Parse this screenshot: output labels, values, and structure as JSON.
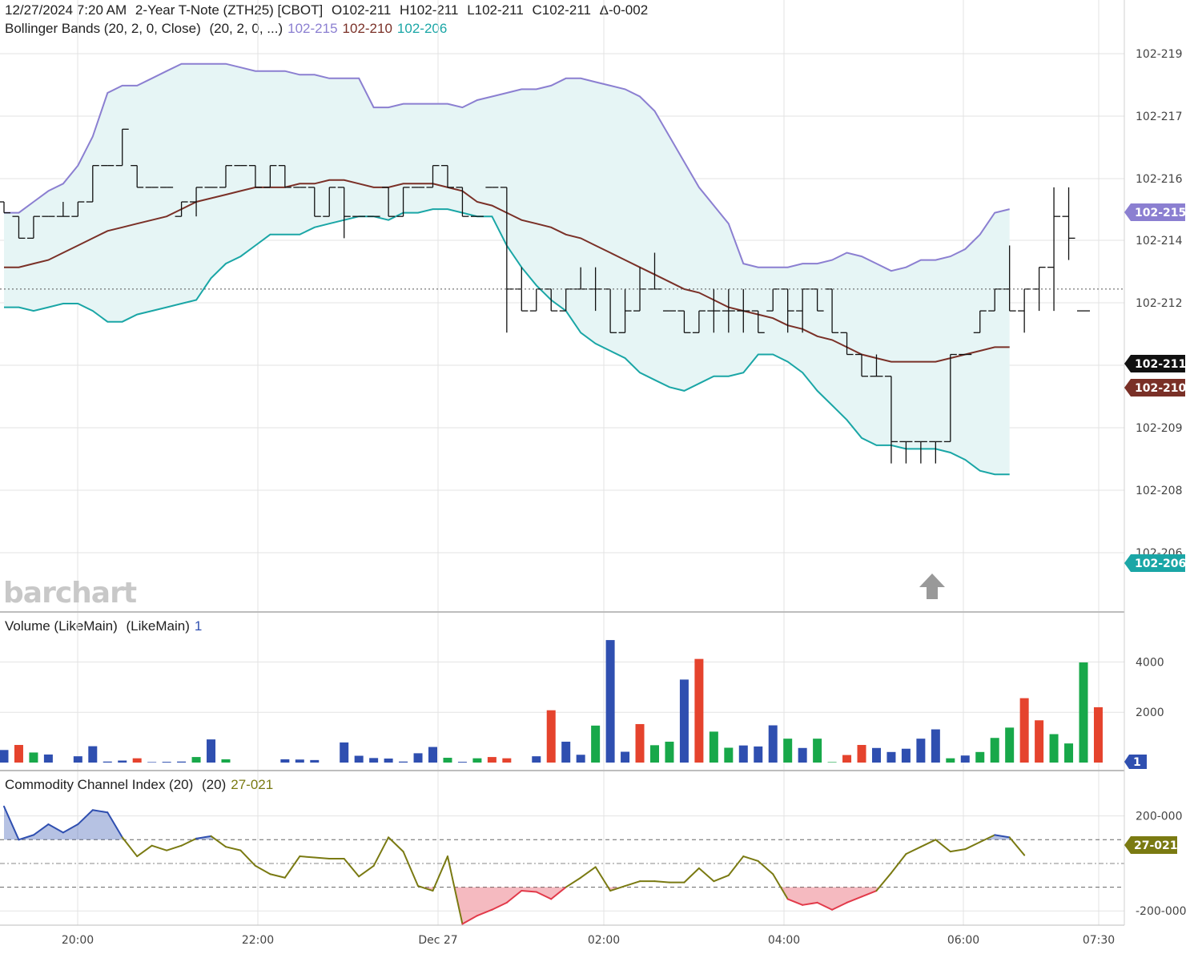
{
  "header": {
    "line1": {
      "timestamp": "12/27/2024 7:20 AM",
      "instrument": "2-Year T-Note (ZTH25) [CBOT]",
      "open": "O102-211",
      "high": "H102-211",
      "low": "L102-211",
      "close": "C102-211",
      "change": "Δ-0-002"
    },
    "line2": {
      "study": "Bollinger Bands (20, 2, 0, Close)",
      "params": "(20, 2, 0, ...)",
      "upper": "102-215",
      "middle": "102-210",
      "lower": "102-206"
    }
  },
  "watermark": "barchart",
  "panes": {
    "volume": {
      "title": "Volume (LikeMain)",
      "params": "(LikeMain)",
      "value": "1"
    },
    "cci": {
      "title": "Commodity Channel Index (20)",
      "params": "(20)",
      "value": "27-021"
    }
  },
  "badges": {
    "upper": "102-215",
    "last": "102-211",
    "middle": "102-210",
    "lower": "102-206",
    "volume": "1",
    "cci": "27-021"
  },
  "colors": {
    "upper_band": "#8b7fd1",
    "middle_band": "#7a3027",
    "lower_band": "#1aa6a6",
    "band_fill": "#e6f5f5",
    "vol_up": "#18a84a",
    "vol_down": "#e5432d",
    "vol_neutral": "#2f4fb0",
    "cci_line": "#7a7a12",
    "cci_above": "#2f4fb0",
    "cci_below": "#e23a4a",
    "last_badge": "#111111"
  },
  "chart_data": [
    {
      "type": "line",
      "title": "2-Year T-Note (ZTH25) [CBOT] — price bars with Bollinger Bands (20, 2, 0, Close)",
      "x_ticks": [
        "20:00",
        "22:00",
        "Dec 27",
        "02:00",
        "04:00",
        "06:00",
        "07:30"
      ],
      "y_ticks": [
        "102-219",
        "102-217",
        "102-216",
        "102-214",
        "102-212",
        "102-209",
        "102-208",
        "102-206"
      ],
      "y_unit": "32nds above 102",
      "ylim": [
        20.5,
        22.05
      ],
      "series": [
        {
          "name": "102-215",
          "values": [
            21.59,
            21.59,
            21.62,
            21.65,
            21.67,
            21.72,
            21.8,
            21.92,
            21.94,
            21.94,
            21.96,
            21.98,
            22.0,
            22.0,
            22.0,
            22.0,
            21.99,
            21.98,
            21.98,
            21.98,
            21.97,
            21.97,
            21.96,
            21.96,
            21.96,
            21.88,
            21.88,
            21.89,
            21.89,
            21.89,
            21.89,
            21.88,
            21.9,
            21.91,
            21.92,
            21.93,
            21.93,
            21.94,
            21.96,
            21.96,
            21.95,
            21.94,
            21.93,
            21.91,
            21.87,
            21.8,
            21.73,
            21.66,
            21.61,
            21.56,
            21.45,
            21.44,
            21.44,
            21.44,
            21.45,
            21.45,
            21.46,
            21.48,
            21.47,
            21.45,
            21.43,
            21.44,
            21.46,
            21.46,
            21.47,
            21.49,
            21.53,
            21.59,
            21.6
          ]
        },
        {
          "name": "102-210",
          "values": [
            21.44,
            21.44,
            21.45,
            21.46,
            21.48,
            21.5,
            21.52,
            21.54,
            21.55,
            21.56,
            21.57,
            21.58,
            21.6,
            21.62,
            21.63,
            21.64,
            21.65,
            21.66,
            21.66,
            21.66,
            21.67,
            21.67,
            21.68,
            21.68,
            21.67,
            21.66,
            21.66,
            21.67,
            21.67,
            21.67,
            21.66,
            21.65,
            21.62,
            21.61,
            21.59,
            21.57,
            21.56,
            21.55,
            21.53,
            21.52,
            21.5,
            21.48,
            21.46,
            21.44,
            21.42,
            21.4,
            21.38,
            21.37,
            21.35,
            21.33,
            21.32,
            21.31,
            21.3,
            21.28,
            21.27,
            21.25,
            21.24,
            21.22,
            21.2,
            21.19,
            21.18,
            21.18,
            21.18,
            21.18,
            21.19,
            21.2,
            21.21,
            21.22,
            21.22
          ]
        },
        {
          "name": "102-206",
          "values": [
            21.33,
            21.33,
            21.32,
            21.33,
            21.34,
            21.34,
            21.32,
            21.29,
            21.29,
            21.31,
            21.32,
            21.33,
            21.34,
            21.35,
            21.41,
            21.45,
            21.47,
            21.5,
            21.53,
            21.53,
            21.53,
            21.55,
            21.56,
            21.57,
            21.58,
            21.58,
            21.57,
            21.59,
            21.59,
            21.6,
            21.6,
            21.59,
            21.58,
            21.58,
            21.5,
            21.44,
            21.39,
            21.35,
            21.32,
            21.26,
            21.23,
            21.21,
            21.19,
            21.15,
            21.13,
            21.11,
            21.1,
            21.12,
            21.14,
            21.14,
            21.15,
            21.2,
            21.2,
            21.18,
            21.15,
            21.1,
            21.06,
            21.02,
            20.97,
            20.95,
            20.95,
            20.94,
            20.94,
            20.94,
            20.93,
            20.91,
            20.88,
            20.87,
            20.87
          ]
        }
      ],
      "bars": [
        {
          "o": 21.62,
          "h": 21.62,
          "l": 21.59,
          "c": 21.59
        },
        {
          "o": 21.58,
          "h": 21.58,
          "l": 21.52,
          "c": 21.52
        },
        {
          "o": 21.52,
          "h": 21.58,
          "l": 21.52,
          "c": 21.58
        },
        {
          "o": 21.58,
          "h": 21.58,
          "l": 21.58,
          "c": 21.58
        },
        {
          "o": 21.58,
          "h": 21.62,
          "l": 21.58,
          "c": 21.58
        },
        {
          "o": 21.58,
          "h": 21.62,
          "l": 21.58,
          "c": 21.62
        },
        {
          "o": 21.62,
          "h": 21.72,
          "l": 21.62,
          "c": 21.72
        },
        {
          "o": 21.72,
          "h": 21.72,
          "l": 21.72,
          "c": 21.72
        },
        {
          "o": 21.72,
          "h": 21.82,
          "l": 21.72,
          "c": 21.82
        },
        {
          "o": 21.72,
          "h": 21.72,
          "l": 21.66,
          "c": 21.66
        },
        {
          "o": 21.66,
          "h": 21.66,
          "l": 21.66,
          "c": 21.66
        },
        {
          "o": 21.66,
          "h": 21.66,
          "l": 21.66,
          "c": 21.66
        },
        {
          "o": 21.58,
          "h": 21.62,
          "l": 21.58,
          "c": 21.62
        },
        {
          "o": 21.62,
          "h": 21.66,
          "l": 21.58,
          "c": 21.66
        },
        {
          "o": 21.66,
          "h": 21.66,
          "l": 21.66,
          "c": 21.66
        },
        {
          "o": 21.66,
          "h": 21.72,
          "l": 21.66,
          "c": 21.72
        },
        {
          "o": 21.72,
          "h": 21.72,
          "l": 21.72,
          "c": 21.72
        },
        {
          "o": 21.72,
          "h": 21.72,
          "l": 21.66,
          "c": 21.66
        },
        {
          "o": 21.66,
          "h": 21.72,
          "l": 21.66,
          "c": 21.72
        },
        {
          "o": 21.72,
          "h": 21.72,
          "l": 21.66,
          "c": 21.66
        },
        {
          "o": 21.66,
          "h": 21.66,
          "l": 21.66,
          "c": 21.66
        },
        {
          "o": 21.66,
          "h": 21.66,
          "l": 21.58,
          "c": 21.58
        },
        {
          "o": 21.58,
          "h": 21.66,
          "l": 21.58,
          "c": 21.66
        },
        {
          "o": 21.66,
          "h": 21.66,
          "l": 21.52,
          "c": 21.58
        },
        {
          "o": 21.58,
          "h": 21.58,
          "l": 21.58,
          "c": 21.58
        },
        {
          "o": 21.58,
          "h": 21.58,
          "l": 21.58,
          "c": 21.58
        },
        {
          "o": 21.66,
          "h": 21.66,
          "l": 21.58,
          "c": 21.58
        },
        {
          "o": 21.58,
          "h": 21.66,
          "l": 21.58,
          "c": 21.66
        },
        {
          "o": 21.66,
          "h": 21.66,
          "l": 21.66,
          "c": 21.66
        },
        {
          "o": 21.66,
          "h": 21.72,
          "l": 21.66,
          "c": 21.72
        },
        {
          "o": 21.72,
          "h": 21.72,
          "l": 21.66,
          "c": 21.66
        },
        {
          "o": 21.66,
          "h": 21.66,
          "l": 21.58,
          "c": 21.58
        },
        {
          "o": 21.58,
          "h": 21.58,
          "l": 21.58,
          "c": 21.58
        },
        {
          "o": 21.66,
          "h": 21.66,
          "l": 21.66,
          "c": 21.66
        },
        {
          "o": 21.66,
          "h": 21.66,
          "l": 21.26,
          "c": 21.38
        },
        {
          "o": 21.38,
          "h": 21.44,
          "l": 21.32,
          "c": 21.32
        },
        {
          "o": 21.32,
          "h": 21.38,
          "l": 21.32,
          "c": 21.38
        },
        {
          "o": 21.38,
          "h": 21.38,
          "l": 21.32,
          "c": 21.32
        },
        {
          "o": 21.32,
          "h": 21.38,
          "l": 21.32,
          "c": 21.38
        },
        {
          "o": 21.38,
          "h": 21.44,
          "l": 21.38,
          "c": 21.38
        },
        {
          "o": 21.38,
          "h": 21.44,
          "l": 21.32,
          "c": 21.38
        },
        {
          "o": 21.38,
          "h": 21.38,
          "l": 21.26,
          "c": 21.26
        },
        {
          "o": 21.26,
          "h": 21.38,
          "l": 21.26,
          "c": 21.32
        },
        {
          "o": 21.32,
          "h": 21.44,
          "l": 21.32,
          "c": 21.38
        },
        {
          "o": 21.38,
          "h": 21.48,
          "l": 21.38,
          "c": 21.38
        },
        {
          "o": 21.32,
          "h": 21.32,
          "l": 21.32,
          "c": 21.32
        },
        {
          "o": 21.32,
          "h": 21.32,
          "l": 21.26,
          "c": 21.26
        },
        {
          "o": 21.26,
          "h": 21.32,
          "l": 21.26,
          "c": 21.32
        },
        {
          "o": 21.32,
          "h": 21.38,
          "l": 21.26,
          "c": 21.32
        },
        {
          "o": 21.32,
          "h": 21.38,
          "l": 21.26,
          "c": 21.32
        },
        {
          "o": 21.32,
          "h": 21.38,
          "l": 21.26,
          "c": 21.32
        },
        {
          "o": 21.32,
          "h": 21.32,
          "l": 21.26,
          "c": 21.26
        },
        {
          "o": 21.32,
          "h": 21.38,
          "l": 21.32,
          "c": 21.38
        },
        {
          "o": 21.38,
          "h": 21.38,
          "l": 21.26,
          "c": 21.32
        },
        {
          "o": 21.32,
          "h": 21.38,
          "l": 21.26,
          "c": 21.38
        },
        {
          "o": 21.38,
          "h": 21.38,
          "l": 21.32,
          "c": 21.32
        },
        {
          "o": 21.38,
          "h": 21.38,
          "l": 21.26,
          "c": 21.26
        },
        {
          "o": 21.26,
          "h": 21.26,
          "l": 21.2,
          "c": 21.2
        },
        {
          "o": 21.2,
          "h": 21.2,
          "l": 21.14,
          "c": 21.14
        },
        {
          "o": 21.14,
          "h": 21.2,
          "l": 21.14,
          "c": 21.14
        },
        {
          "o": 21.14,
          "h": 21.14,
          "l": 20.9,
          "c": 20.96
        },
        {
          "o": 20.96,
          "h": 20.96,
          "l": 20.9,
          "c": 20.96
        },
        {
          "o": 20.96,
          "h": 20.96,
          "l": 20.9,
          "c": 20.96
        },
        {
          "o": 20.96,
          "h": 20.96,
          "l": 20.9,
          "c": 20.96
        },
        {
          "o": 20.96,
          "h": 21.2,
          "l": 20.96,
          "c": 21.2
        },
        {
          "o": 21.2,
          "h": 21.2,
          "l": 21.2,
          "c": 21.2
        },
        {
          "o": 21.26,
          "h": 21.32,
          "l": 21.26,
          "c": 21.32
        },
        {
          "o": 21.32,
          "h": 21.38,
          "l": 21.32,
          "c": 21.38
        },
        {
          "o": 21.38,
          "h": 21.5,
          "l": 21.32,
          "c": 21.32
        },
        {
          "o": 21.32,
          "h": 21.38,
          "l": 21.26,
          "c": 21.38
        },
        {
          "o": 21.38,
          "h": 21.44,
          "l": 21.32,
          "c": 21.44
        },
        {
          "o": 21.44,
          "h": 21.66,
          "l": 21.32,
          "c": 21.58
        },
        {
          "o": 21.58,
          "h": 21.66,
          "l": 21.46,
          "c": 21.52
        },
        {
          "o": 21.32,
          "h": 21.32,
          "l": 21.32,
          "c": 21.32
        }
      ]
    },
    {
      "type": "bar",
      "title": "Volume (LikeMain)",
      "y_ticks": [
        "4000",
        "2000"
      ],
      "ylim": [
        0,
        5000
      ],
      "values": [
        500,
        700,
        400,
        320,
        0,
        250,
        650,
        40,
        80,
        170,
        20,
        30,
        40,
        220,
        920,
        130,
        0,
        0,
        0,
        130,
        120,
        100,
        0,
        800,
        270,
        180,
        160,
        40,
        370,
        620,
        190,
        30,
        170,
        220,
        170,
        0,
        250,
        2080,
        830,
        310,
        1470,
        4870,
        430,
        1530,
        690,
        830,
        3300,
        4120,
        1230,
        590,
        680,
        640,
        1480,
        950,
        580,
        950,
        20,
        300,
        700,
        580,
        420,
        550,
        950,
        1320,
        170,
        280,
        420,
        980,
        1390,
        2560,
        1680,
        1130,
        760,
        3980,
        2200
      ],
      "colors": [
        "n",
        "d",
        "u",
        "n",
        "n",
        "n",
        "n",
        "n",
        "n",
        "d",
        "n",
        "n",
        "n",
        "u",
        "n",
        "u",
        "n",
        "n",
        "n",
        "n",
        "n",
        "n",
        "n",
        "n",
        "n",
        "n",
        "n",
        "n",
        "n",
        "n",
        "u",
        "n",
        "u",
        "d",
        "d",
        "n",
        "n",
        "d",
        "n",
        "n",
        "u",
        "n",
        "n",
        "d",
        "u",
        "u",
        "n",
        "d",
        "u",
        "u",
        "n",
        "n",
        "n",
        "u",
        "n",
        "u",
        "u",
        "d",
        "d",
        "n",
        "n",
        "n",
        "n",
        "n",
        "u",
        "n",
        "u",
        "u",
        "u",
        "d",
        "d",
        "u",
        "u",
        "u",
        "d"
      ]
    },
    {
      "type": "line",
      "title": "Commodity Channel Index (20)",
      "y_ticks": [
        "200-000",
        "-200-000"
      ],
      "ylim": [
        -260,
        290
      ],
      "guides": [
        100,
        0,
        -100
      ],
      "values": [
        240,
        100,
        120,
        165,
        130,
        165,
        225,
        215,
        110,
        30,
        75,
        55,
        75,
        105,
        115,
        70,
        55,
        -10,
        -45,
        -60,
        30,
        25,
        20,
        20,
        -55,
        -10,
        110,
        50,
        -95,
        -115,
        30,
        -255,
        -220,
        -195,
        -165,
        -115,
        -120,
        -150,
        -100,
        -60,
        -15,
        -115,
        -95,
        -75,
        -75,
        -80,
        -80,
        -20,
        -75,
        -50,
        30,
        10,
        -45,
        -150,
        -175,
        -165,
        -195,
        -165,
        -140,
        -115,
        -40,
        40,
        70,
        100,
        50,
        60,
        90,
        120,
        110,
        35
      ]
    }
  ]
}
